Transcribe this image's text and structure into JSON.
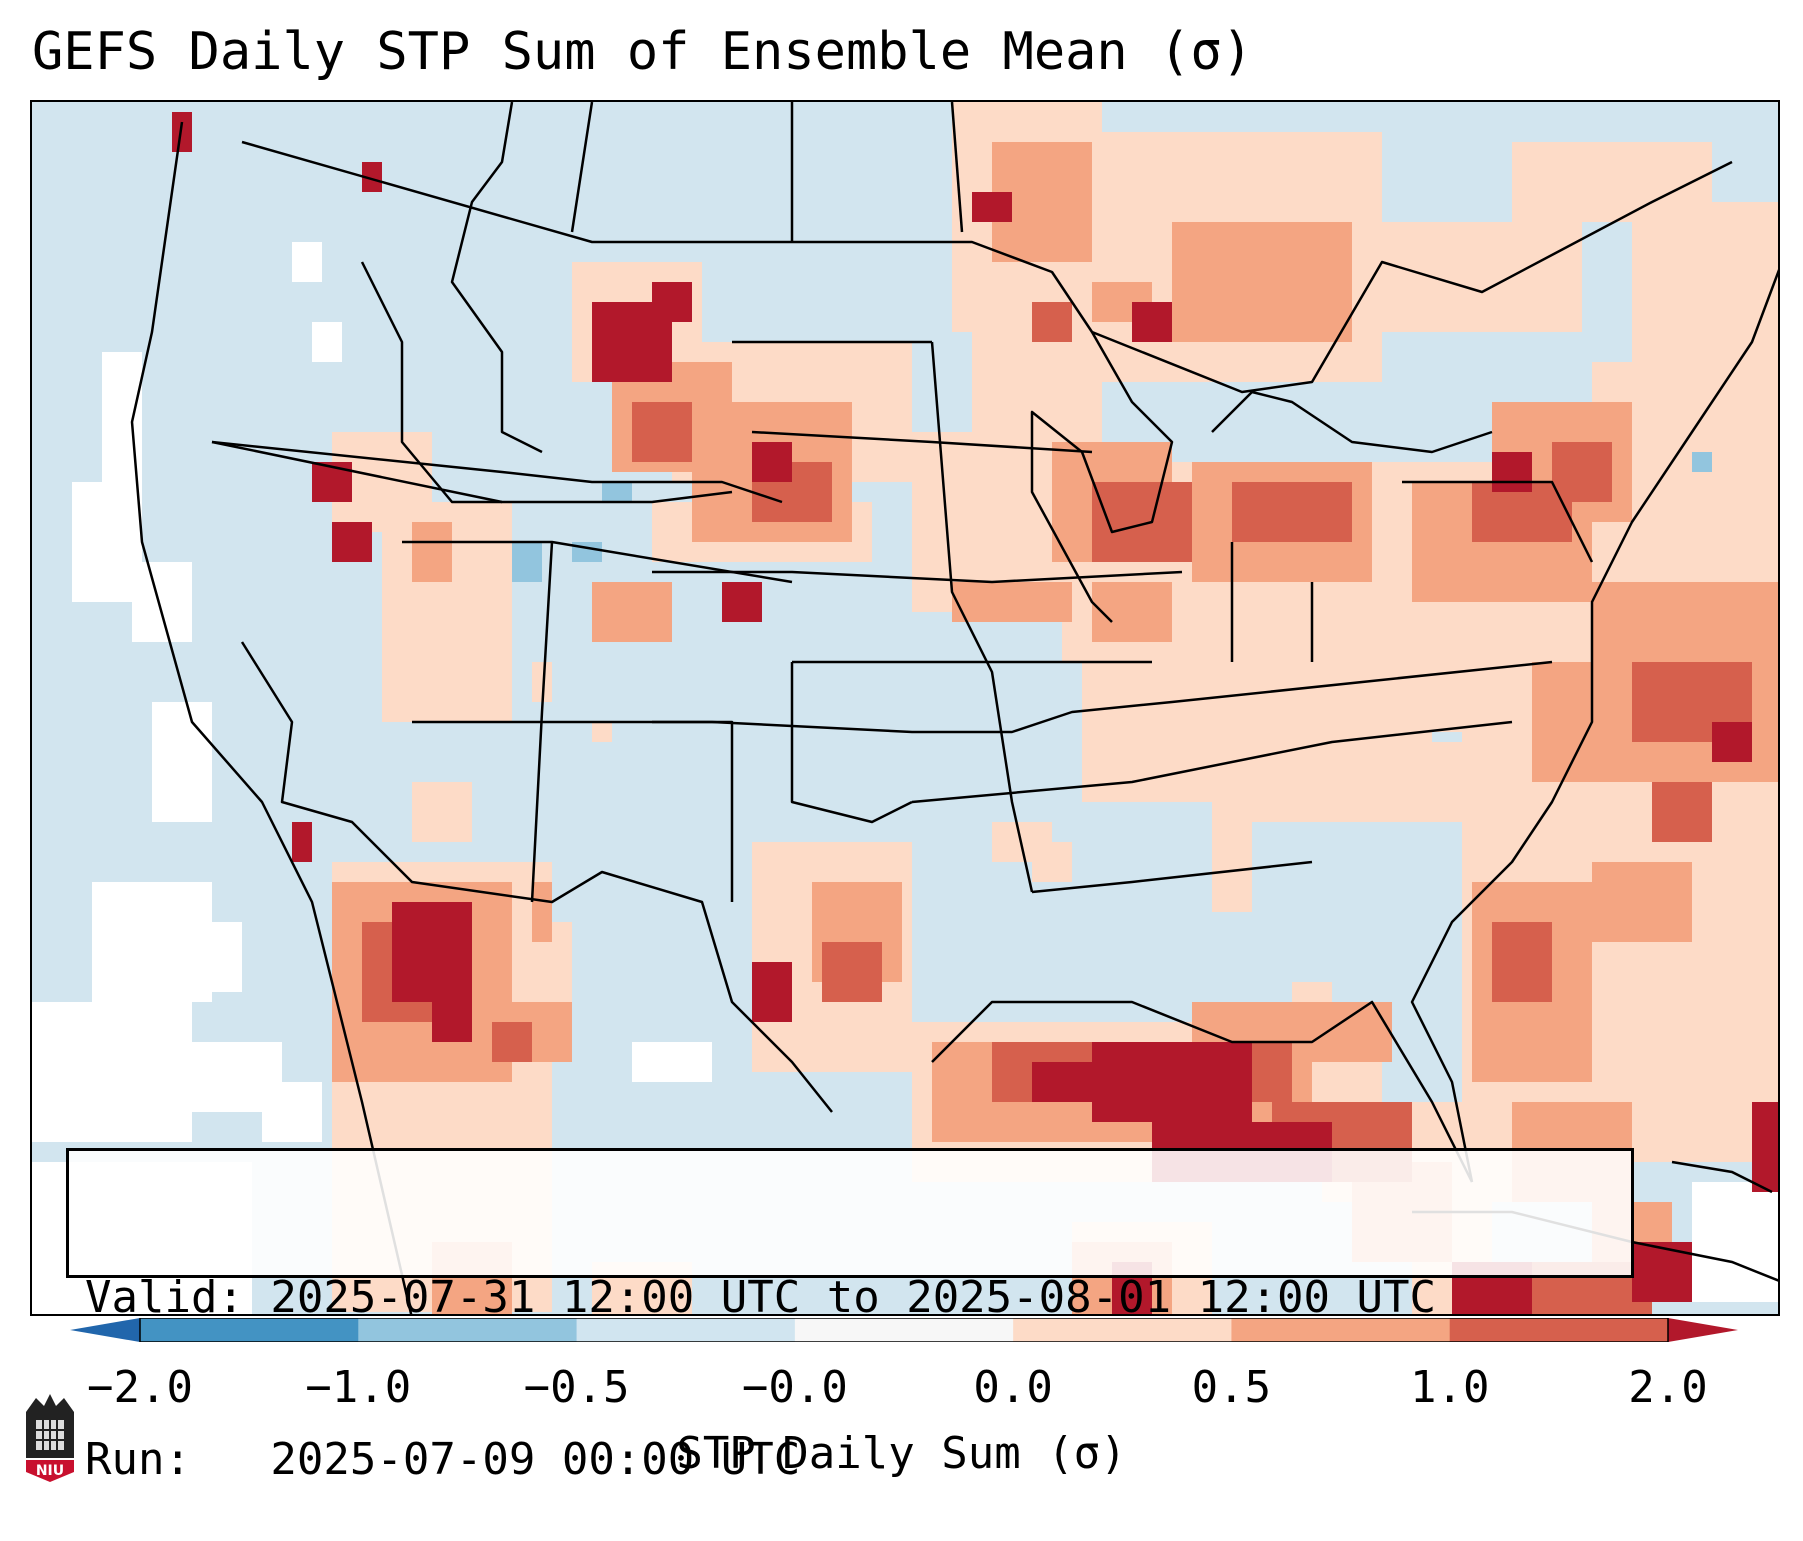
{
  "title": "GEFS Daily STP Sum of Ensemble Mean (σ)",
  "info": {
    "valid_line": "Valid: 2025-07-31 12:00 UTC to 2025-08-01 12:00 UTC",
    "run_line": "Run:   2025-07-09 00:00 UTC"
  },
  "colorbar": {
    "label": "STP Daily Sum (σ)",
    "ticks": [
      "−2.0",
      "−1.0",
      "−0.5",
      "−0.0",
      "0.0",
      "0.5",
      "1.0",
      "2.0"
    ],
    "bin_colors": [
      "#2166ac",
      "#4393c3",
      "#92c5de",
      "#d1e5f0",
      "#f7f7f7",
      "#fddbc7",
      "#f4a582",
      "#d6604d",
      "#b2182b"
    ],
    "extend": "both"
  },
  "legend_colors": {
    "neutral_blue": "#d2e5ef",
    "white": "#ffffff",
    "light_pink": "#fddbc7",
    "salmon": "#f4a582",
    "red": "#d6604d",
    "dark_red": "#b2182b"
  },
  "map_regions": [
    {
      "name": "north-plains",
      "level": 3
    },
    {
      "name": "great-lakes",
      "level": 2
    },
    {
      "name": "northeast",
      "level": 2
    },
    {
      "name": "gulf-of-mexico",
      "level": 3
    },
    {
      "name": "southwest-mexico",
      "level": 3
    },
    {
      "name": "atlantic",
      "level": 2
    },
    {
      "name": "pacific-coast",
      "level": 0
    }
  ],
  "logo": {
    "text": "NIU"
  }
}
